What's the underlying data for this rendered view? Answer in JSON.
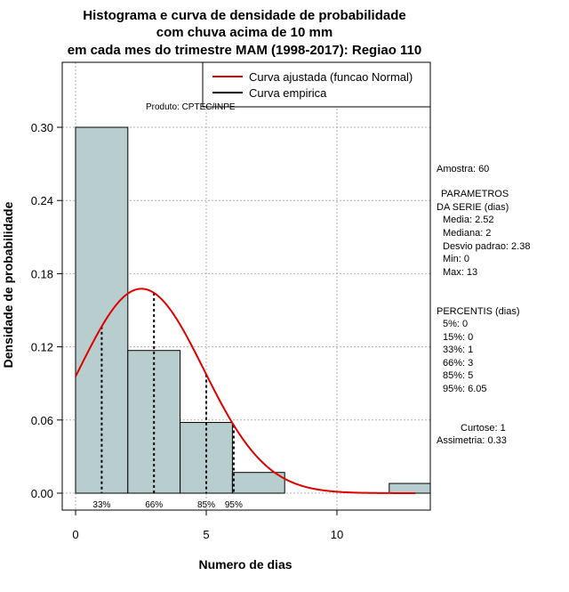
{
  "chart_data": {
    "type": "bar",
    "title_lines": [
      "Histograma e curva de densidade de probabilidade",
      "com chuva acima de 10 mm",
      "em cada mes do trimestre MAM (1998-2017): Regiao 110"
    ],
    "xlabel": "Numero de dias",
    "ylabel": "Densidade de probabilidade",
    "xlim": [
      -0.5,
      13.5
    ],
    "ylim": [
      0,
      0.36
    ],
    "xticks": [
      0,
      5,
      10
    ],
    "yticks": [
      0.0,
      0.06,
      0.12,
      0.18,
      0.24,
      0.3
    ],
    "ytick_labels": [
      "0.00",
      "0.06",
      "0.12",
      "0.18",
      "0.24",
      "0.30"
    ],
    "bars": [
      {
        "x0": 0,
        "x1": 2,
        "density": 0.3
      },
      {
        "x0": 2,
        "x1": 4,
        "density": 0.117
      },
      {
        "x0": 4,
        "x1": 6,
        "density": 0.058
      },
      {
        "x0": 6,
        "x1": 8,
        "density": 0.017
      },
      {
        "x0": 8,
        "x1": 10,
        "density": 0.0
      },
      {
        "x0": 10,
        "x1": 12,
        "density": 0.0
      },
      {
        "x0": 12,
        "x1": 14,
        "density": 0.008
      }
    ],
    "bar_color": "#b8cece",
    "curve": {
      "name": "Curva ajustada (funcao Normal)",
      "color": "#dd0000",
      "mean": 2.52,
      "sd": 2.38,
      "x_range": [
        0,
        13
      ]
    },
    "empirical": {
      "name": "Curva empirica",
      "color": "#000000"
    },
    "percentile_lines": [
      {
        "label": "33%",
        "x": 1
      },
      {
        "label": "66%",
        "x": 3
      },
      {
        "label": "85%",
        "x": 5
      },
      {
        "label": "95%",
        "x": 6.05
      }
    ],
    "legend_position": "top-right",
    "grid": true
  },
  "annotation": {
    "produto": "Produto: CPTEC/INPE"
  },
  "stats": {
    "amostra": "Amostra: 60",
    "param_title1": "PARAMETROS",
    "param_title2": "DA SERIE (dias)",
    "media": "Media: 2.52",
    "mediana": "Mediana: 2",
    "desvio": "Desvio padrao: 2.38",
    "min": "Min: 0",
    "max": "Max: 13",
    "percentis_title": "PERCENTIS (dias)",
    "p5": "5%: 0",
    "p15": "15%: 0",
    "p33": "33%: 1",
    "p66": "66%: 3",
    "p85": "85%: 5",
    "p95": "95%: 6.05",
    "curtose": "Curtose: 1",
    "assimetria": "Assimetria: 0.33"
  }
}
